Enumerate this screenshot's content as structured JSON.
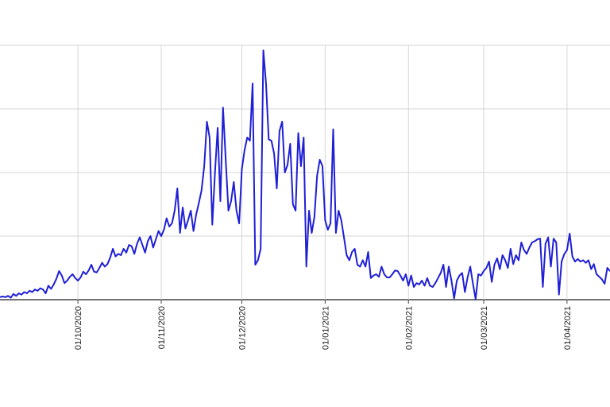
{
  "chart_data": {
    "type": "line",
    "title": "",
    "xlabel": "",
    "ylabel": "",
    "x_start": "2020-09-02",
    "x_end": "2021-04-17",
    "x_ticks": [
      {
        "date": "2020-10-01",
        "label": "01/10/2020"
      },
      {
        "date": "2020-11-01",
        "label": "01/11/2020"
      },
      {
        "date": "2020-12-01",
        "label": "01/12/2020"
      },
      {
        "date": "2021-01-01",
        "label": "01/01/2021"
      },
      {
        "date": "2021-02-01",
        "label": "01/02/2021"
      },
      {
        "date": "2021-03-01",
        "label": "01/03/2021"
      },
      {
        "date": "2021-04-01",
        "label": "01/04/2021"
      }
    ],
    "ylim": [
      0,
      4
    ],
    "y_gridlines": [
      0,
      1,
      2,
      3,
      4
    ],
    "y_tick_labels_visible": false,
    "grid": true,
    "legend": "none",
    "series": [
      {
        "color": "#1f1fd6",
        "points": [
          [
            "2020-09-02",
            0.04
          ],
          [
            "2020-09-03",
            0.05
          ],
          [
            "2020-09-04",
            0.04
          ],
          [
            "2020-09-05",
            0.06
          ],
          [
            "2020-09-06",
            0.03
          ],
          [
            "2020-09-07",
            0.09
          ],
          [
            "2020-09-08",
            0.06
          ],
          [
            "2020-09-09",
            0.1
          ],
          [
            "2020-09-10",
            0.08
          ],
          [
            "2020-09-11",
            0.12
          ],
          [
            "2020-09-12",
            0.1
          ],
          [
            "2020-09-13",
            0.14
          ],
          [
            "2020-09-14",
            0.12
          ],
          [
            "2020-09-15",
            0.16
          ],
          [
            "2020-09-16",
            0.14
          ],
          [
            "2020-09-17",
            0.18
          ],
          [
            "2020-09-18",
            0.16
          ],
          [
            "2020-09-19",
            0.1
          ],
          [
            "2020-09-20",
            0.22
          ],
          [
            "2020-09-21",
            0.17
          ],
          [
            "2020-09-22",
            0.24
          ],
          [
            "2020-09-23",
            0.33
          ],
          [
            "2020-09-24",
            0.45
          ],
          [
            "2020-09-25",
            0.38
          ],
          [
            "2020-09-26",
            0.26
          ],
          [
            "2020-09-27",
            0.3
          ],
          [
            "2020-09-28",
            0.36
          ],
          [
            "2020-09-29",
            0.4
          ],
          [
            "2020-09-30",
            0.34
          ],
          [
            "2020-10-01",
            0.3
          ],
          [
            "2020-10-02",
            0.35
          ],
          [
            "2020-10-03",
            0.44
          ],
          [
            "2020-10-04",
            0.4
          ],
          [
            "2020-10-05",
            0.46
          ],
          [
            "2020-10-06",
            0.55
          ],
          [
            "2020-10-07",
            0.44
          ],
          [
            "2020-10-08",
            0.43
          ],
          [
            "2020-10-09",
            0.5
          ],
          [
            "2020-10-10",
            0.58
          ],
          [
            "2020-10-11",
            0.52
          ],
          [
            "2020-10-12",
            0.56
          ],
          [
            "2020-10-13",
            0.66
          ],
          [
            "2020-10-14",
            0.8
          ],
          [
            "2020-10-15",
            0.68
          ],
          [
            "2020-10-16",
            0.72
          ],
          [
            "2020-10-17",
            0.7
          ],
          [
            "2020-10-18",
            0.8
          ],
          [
            "2020-10-19",
            0.74
          ],
          [
            "2020-10-20",
            0.86
          ],
          [
            "2020-10-21",
            0.84
          ],
          [
            "2020-10-22",
            0.72
          ],
          [
            "2020-10-23",
            0.88
          ],
          [
            "2020-10-24",
            0.98
          ],
          [
            "2020-10-25",
            0.86
          ],
          [
            "2020-10-26",
            0.74
          ],
          [
            "2020-10-27",
            0.92
          ],
          [
            "2020-10-28",
            1.0
          ],
          [
            "2020-10-29",
            0.82
          ],
          [
            "2020-10-30",
            0.95
          ],
          [
            "2020-10-31",
            1.08
          ],
          [
            "2020-11-01",
            1.0
          ],
          [
            "2020-11-02",
            1.1
          ],
          [
            "2020-11-03",
            1.28
          ],
          [
            "2020-11-04",
            1.15
          ],
          [
            "2020-11-05",
            1.2
          ],
          [
            "2020-11-06",
            1.4
          ],
          [
            "2020-11-07",
            1.75
          ],
          [
            "2020-11-08",
            1.05
          ],
          [
            "2020-11-09",
            1.45
          ],
          [
            "2020-11-10",
            1.12
          ],
          [
            "2020-11-11",
            1.25
          ],
          [
            "2020-11-12",
            1.4
          ],
          [
            "2020-11-13",
            1.08
          ],
          [
            "2020-11-14",
            1.34
          ],
          [
            "2020-11-15",
            1.52
          ],
          [
            "2020-11-16",
            1.72
          ],
          [
            "2020-11-17",
            2.1
          ],
          [
            "2020-11-18",
            2.8
          ],
          [
            "2020-11-19",
            2.55
          ],
          [
            "2020-11-20",
            1.18
          ],
          [
            "2020-11-21",
            2.0
          ],
          [
            "2020-11-22",
            2.7
          ],
          [
            "2020-11-23",
            1.55
          ],
          [
            "2020-11-24",
            3.02
          ],
          [
            "2020-11-25",
            2.2
          ],
          [
            "2020-11-26",
            1.4
          ],
          [
            "2020-11-27",
            1.55
          ],
          [
            "2020-11-28",
            1.85
          ],
          [
            "2020-11-29",
            1.4
          ],
          [
            "2020-11-30",
            1.2
          ],
          [
            "2020-12-01",
            2.05
          ],
          [
            "2020-12-02",
            2.35
          ],
          [
            "2020-12-03",
            2.55
          ],
          [
            "2020-12-04",
            2.5
          ],
          [
            "2020-12-05",
            3.4
          ],
          [
            "2020-12-06",
            0.55
          ],
          [
            "2020-12-07",
            0.62
          ],
          [
            "2020-12-08",
            0.8
          ],
          [
            "2020-12-09",
            3.92
          ],
          [
            "2020-12-10",
            3.4
          ],
          [
            "2020-12-11",
            2.52
          ],
          [
            "2020-12-12",
            2.5
          ],
          [
            "2020-12-13",
            2.3
          ],
          [
            "2020-12-14",
            1.75
          ],
          [
            "2020-12-15",
            2.65
          ],
          [
            "2020-12-16",
            2.8
          ],
          [
            "2020-12-17",
            2.0
          ],
          [
            "2020-12-18",
            2.12
          ],
          [
            "2020-12-19",
            2.45
          ],
          [
            "2020-12-20",
            1.5
          ],
          [
            "2020-12-21",
            1.4
          ],
          [
            "2020-12-22",
            2.62
          ],
          [
            "2020-12-23",
            2.1
          ],
          [
            "2020-12-24",
            2.55
          ],
          [
            "2020-12-25",
            0.52
          ],
          [
            "2020-12-26",
            1.4
          ],
          [
            "2020-12-27",
            1.05
          ],
          [
            "2020-12-28",
            1.3
          ],
          [
            "2020-12-29",
            1.95
          ],
          [
            "2020-12-30",
            2.2
          ],
          [
            "2020-12-31",
            2.1
          ],
          [
            "2021-01-01",
            1.25
          ],
          [
            "2021-01-02",
            1.1
          ],
          [
            "2021-01-03",
            1.2
          ],
          [
            "2021-01-04",
            2.68
          ],
          [
            "2021-01-05",
            1.05
          ],
          [
            "2021-01-06",
            1.4
          ],
          [
            "2021-01-07",
            1.25
          ],
          [
            "2021-01-08",
            0.98
          ],
          [
            "2021-01-09",
            0.7
          ],
          [
            "2021-01-10",
            0.62
          ],
          [
            "2021-01-11",
            0.75
          ],
          [
            "2021-01-12",
            0.8
          ],
          [
            "2021-01-13",
            0.55
          ],
          [
            "2021-01-14",
            0.52
          ],
          [
            "2021-01-15",
            0.62
          ],
          [
            "2021-01-16",
            0.52
          ],
          [
            "2021-01-17",
            0.75
          ],
          [
            "2021-01-18",
            0.34
          ],
          [
            "2021-01-19",
            0.38
          ],
          [
            "2021-01-20",
            0.4
          ],
          [
            "2021-01-21",
            0.36
          ],
          [
            "2021-01-22",
            0.52
          ],
          [
            "2021-01-23",
            0.4
          ],
          [
            "2021-01-24",
            0.35
          ],
          [
            "2021-01-25",
            0.35
          ],
          [
            "2021-01-26",
            0.4
          ],
          [
            "2021-01-27",
            0.46
          ],
          [
            "2021-01-28",
            0.45
          ],
          [
            "2021-01-29",
            0.38
          ],
          [
            "2021-01-30",
            0.3
          ],
          [
            "2021-01-31",
            0.4
          ],
          [
            "2021-02-01",
            0.22
          ],
          [
            "2021-02-02",
            0.38
          ],
          [
            "2021-02-03",
            0.2
          ],
          [
            "2021-02-04",
            0.26
          ],
          [
            "2021-02-05",
            0.24
          ],
          [
            "2021-02-06",
            0.3
          ],
          [
            "2021-02-07",
            0.22
          ],
          [
            "2021-02-08",
            0.34
          ],
          [
            "2021-02-09",
            0.22
          ],
          [
            "2021-02-10",
            0.2
          ],
          [
            "2021-02-11",
            0.26
          ],
          [
            "2021-02-12",
            0.34
          ],
          [
            "2021-02-13",
            0.42
          ],
          [
            "2021-02-14",
            0.55
          ],
          [
            "2021-02-15",
            0.2
          ],
          [
            "2021-02-16",
            0.52
          ],
          [
            "2021-02-17",
            0.3
          ],
          [
            "2021-02-18",
            0.02
          ],
          [
            "2021-02-19",
            0.3
          ],
          [
            "2021-02-20",
            0.38
          ],
          [
            "2021-02-21",
            0.42
          ],
          [
            "2021-02-22",
            0.12
          ],
          [
            "2021-02-23",
            0.35
          ],
          [
            "2021-02-24",
            0.52
          ],
          [
            "2021-02-25",
            0.25
          ],
          [
            "2021-02-26",
            0.01
          ],
          [
            "2021-02-27",
            0.4
          ],
          [
            "2021-02-28",
            0.38
          ],
          [
            "2021-03-01",
            0.45
          ],
          [
            "2021-03-02",
            0.5
          ],
          [
            "2021-03-03",
            0.6
          ],
          [
            "2021-03-04",
            0.28
          ],
          [
            "2021-03-05",
            0.55
          ],
          [
            "2021-03-06",
            0.65
          ],
          [
            "2021-03-07",
            0.48
          ],
          [
            "2021-03-08",
            0.7
          ],
          [
            "2021-03-09",
            0.62
          ],
          [
            "2021-03-10",
            0.5
          ],
          [
            "2021-03-11",
            0.8
          ],
          [
            "2021-03-12",
            0.56
          ],
          [
            "2021-03-13",
            0.7
          ],
          [
            "2021-03-14",
            0.62
          ],
          [
            "2021-03-15",
            0.9
          ],
          [
            "2021-03-16",
            0.78
          ],
          [
            "2021-03-17",
            0.72
          ],
          [
            "2021-03-18",
            0.82
          ],
          [
            "2021-03-19",
            0.9
          ],
          [
            "2021-03-20",
            0.92
          ],
          [
            "2021-03-21",
            0.95
          ],
          [
            "2021-03-22",
            0.96
          ],
          [
            "2021-03-23",
            0.2
          ],
          [
            "2021-03-24",
            0.88
          ],
          [
            "2021-03-25",
            0.98
          ],
          [
            "2021-03-26",
            0.52
          ],
          [
            "2021-03-27",
            0.96
          ],
          [
            "2021-03-28",
            0.9
          ],
          [
            "2021-03-29",
            0.08
          ],
          [
            "2021-03-30",
            0.6
          ],
          [
            "2021-03-31",
            0.72
          ],
          [
            "2021-04-01",
            0.78
          ],
          [
            "2021-04-02",
            1.04
          ],
          [
            "2021-04-03",
            0.68
          ],
          [
            "2021-04-04",
            0.6
          ],
          [
            "2021-04-05",
            0.64
          ],
          [
            "2021-04-06",
            0.6
          ],
          [
            "2021-04-07",
            0.62
          ],
          [
            "2021-04-08",
            0.58
          ],
          [
            "2021-04-09",
            0.62
          ],
          [
            "2021-04-10",
            0.48
          ],
          [
            "2021-04-11",
            0.56
          ],
          [
            "2021-04-12",
            0.4
          ],
          [
            "2021-04-13",
            0.36
          ],
          [
            "2021-04-14",
            0.32
          ],
          [
            "2021-04-15",
            0.25
          ],
          [
            "2021-04-16",
            0.5
          ],
          [
            "2021-04-17",
            0.45
          ]
        ]
      }
    ]
  }
}
